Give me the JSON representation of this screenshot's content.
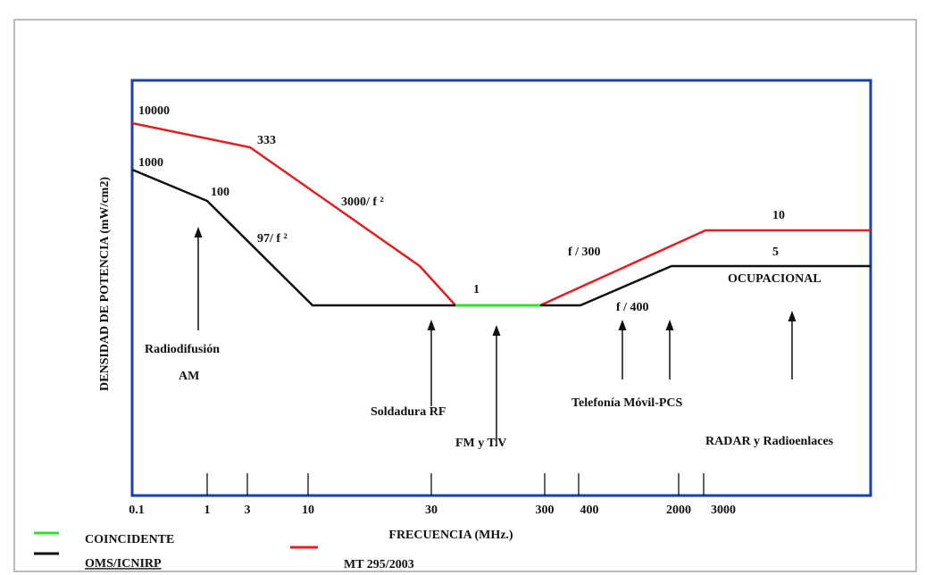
{
  "diagram": {
    "y_axis_label": "DENSIDAD DE POTENCIA (mW/cm2)",
    "x_axis_label": "FRECUENCIA (MHz.)",
    "x_ticks": [
      "0.1",
      "1",
      "3",
      "10",
      "30",
      "300",
      "400",
      "2000",
      "3000"
    ],
    "line_labels": [
      "10000",
      "333",
      "1000",
      "100",
      "3000/ f ²",
      "97/ f ²",
      "1",
      "f / 300",
      "10",
      "5",
      "OCUPACIONAL",
      "f / 400"
    ],
    "annotations": [
      "Radiodifusión",
      "AM",
      "Soldadura RF",
      "FM y T.V",
      "Telefonía Móvil-PCS",
      "RADAR y Radioenlaces"
    ],
    "legend": [
      "COINCIDENTE",
      "OMS/ICNIRP",
      "MT 295/2003"
    ]
  }
}
